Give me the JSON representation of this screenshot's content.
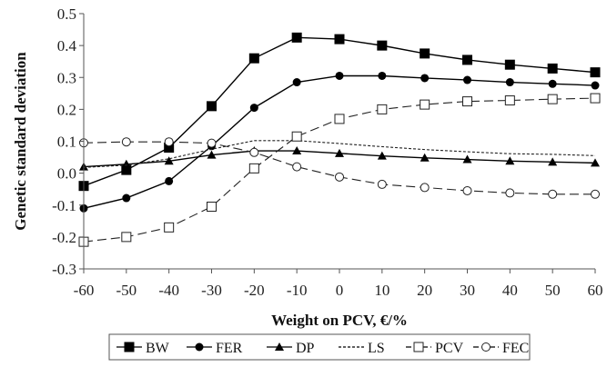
{
  "chart_data": {
    "type": "line",
    "title": "",
    "xlabel": "Weight on PCV, €/%",
    "ylabel": "Genetic standard deviation",
    "xlim": [
      -60,
      60
    ],
    "ylim": [
      -0.3,
      0.5
    ],
    "x": [
      -60,
      -50,
      -40,
      -30,
      -20,
      -10,
      0,
      10,
      20,
      30,
      40,
      50,
      60
    ],
    "x_tick_labels": [
      "-60",
      "-50",
      "-40",
      "-30",
      "-20",
      "-10",
      "0",
      "10",
      "20",
      "30",
      "40",
      "50",
      "60"
    ],
    "y_tick_labels": [
      "0.5",
      "0.4",
      "0.3",
      "0.2",
      "0.1",
      "0.0",
      "-0.1",
      "-0.2",
      "-0.3"
    ],
    "y_ticks": [
      0.5,
      0.4,
      0.3,
      0.2,
      0.1,
      0.0,
      -0.1,
      -0.2,
      -0.3
    ],
    "grid": false,
    "legend_position": "bottom",
    "series": [
      {
        "name": "BW",
        "marker": "square-filled",
        "dash": "solid",
        "values": [
          -0.04,
          0.01,
          0.08,
          0.21,
          0.36,
          0.425,
          0.42,
          0.4,
          0.375,
          0.355,
          0.34,
          0.328,
          0.316
        ]
      },
      {
        "name": "FER",
        "marker": "circle-filled",
        "dash": "solid",
        "values": [
          -0.11,
          -0.078,
          -0.025,
          0.085,
          0.205,
          0.285,
          0.305,
          0.305,
          0.298,
          0.292,
          0.285,
          0.28,
          0.275
        ]
      },
      {
        "name": "DP",
        "marker": "triangle-filled",
        "dash": "solid",
        "values": [
          0.02,
          0.028,
          0.038,
          0.057,
          0.07,
          0.07,
          0.062,
          0.054,
          0.048,
          0.043,
          0.038,
          0.035,
          0.032
        ]
      },
      {
        "name": "LS",
        "marker": "none",
        "dash": "dotted",
        "values": [
          0.018,
          0.025,
          0.045,
          0.075,
          0.102,
          0.102,
          0.093,
          0.083,
          0.074,
          0.067,
          0.061,
          0.059,
          0.055
        ]
      },
      {
        "name": "PCV",
        "marker": "square-open",
        "dash": "long-dash",
        "values": [
          -0.215,
          -0.2,
          -0.17,
          -0.105,
          0.015,
          0.115,
          0.17,
          0.2,
          0.215,
          0.225,
          0.228,
          0.232,
          0.235
        ]
      },
      {
        "name": "FEC",
        "marker": "circle-open",
        "dash": "long-dash",
        "values": [
          0.095,
          0.098,
          0.098,
          0.094,
          0.065,
          0.02,
          -0.012,
          -0.035,
          -0.045,
          -0.055,
          -0.062,
          -0.066,
          -0.066
        ]
      }
    ]
  }
}
